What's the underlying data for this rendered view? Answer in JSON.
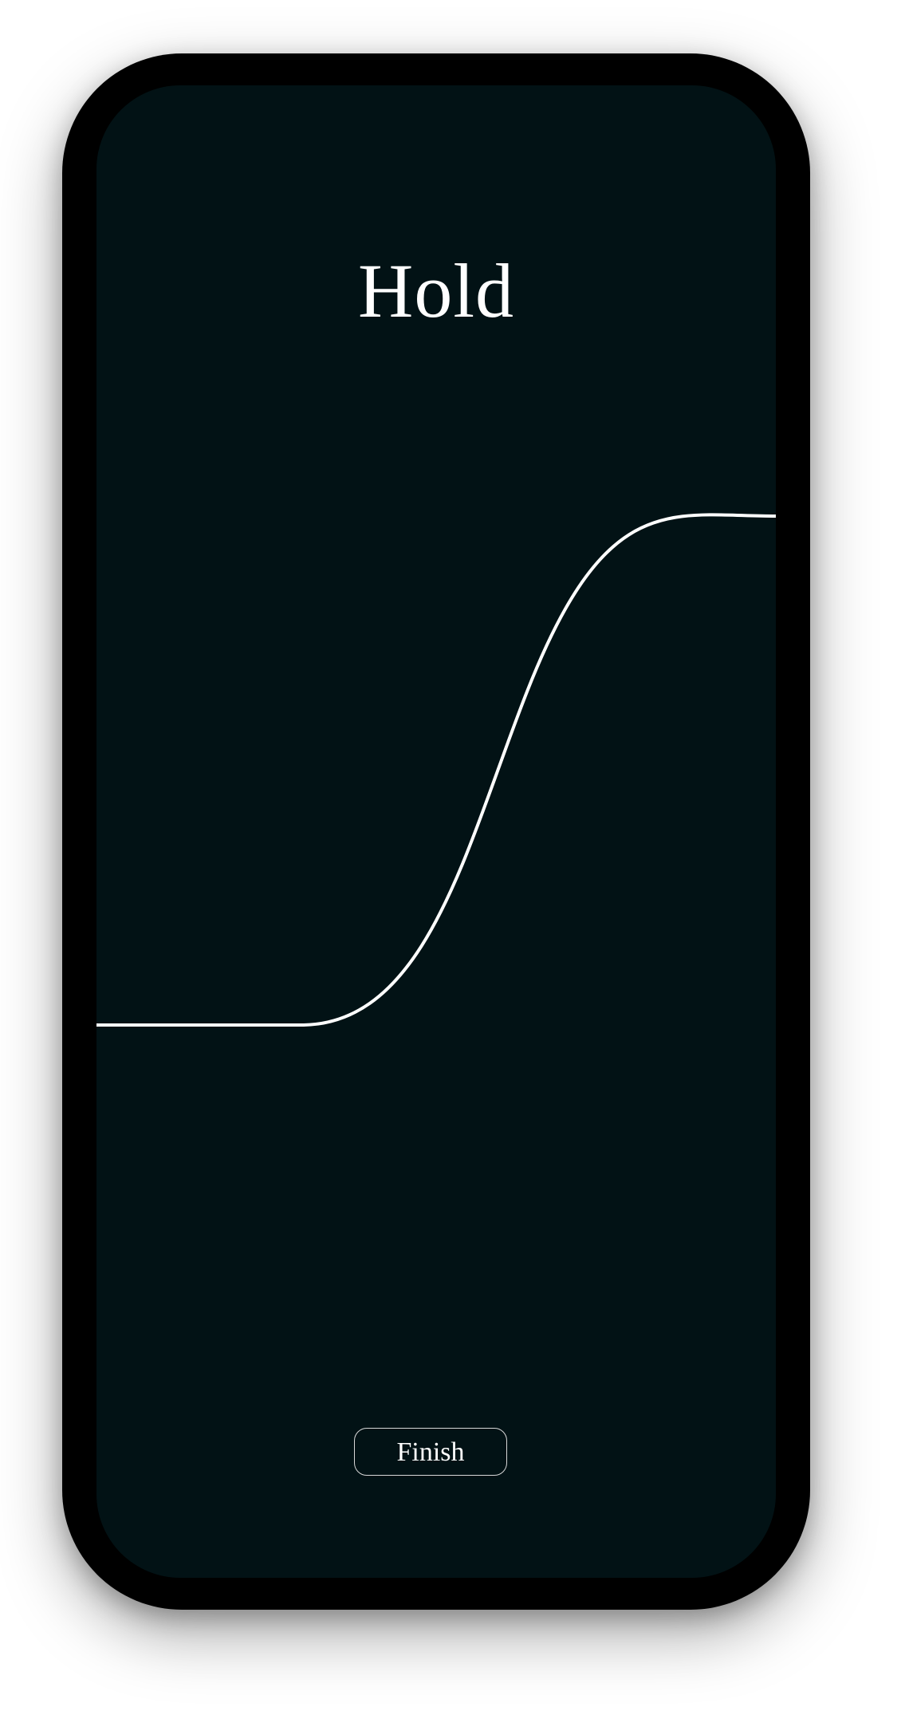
{
  "screen": {
    "title": "Hold",
    "finish_label": "Finish"
  },
  "colors": {
    "screen_background": "#021215",
    "frame": "#000000",
    "curve": "#ffffff",
    "text": "#ffffff",
    "button_border": "#d8d8d8"
  }
}
